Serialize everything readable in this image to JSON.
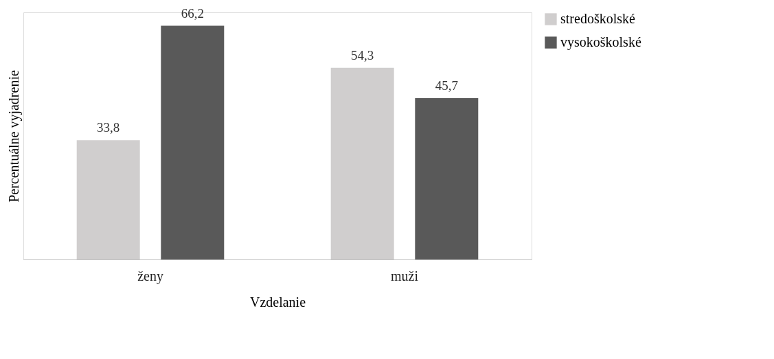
{
  "chart_data": {
    "type": "bar",
    "tick_labels": "x",
    "xlabel": "Vzdelanie",
    "ylabel": "Percentuálne vyjadrenie",
    "categories": [
      "ženy",
      "muži"
    ],
    "series": [
      {
        "name": "stredoškolské",
        "color": "#d0cece",
        "values": [
          33.8,
          54.3
        ],
        "value_labels": [
          "33,8",
          "54,3"
        ]
      },
      {
        "name": "vysokoškolské",
        "color": "#595959",
        "values": [
          66.2,
          45.7
        ],
        "value_labels": [
          "66,2",
          "45,7"
        ]
      }
    ],
    "grid": false,
    "legend": "right"
  }
}
